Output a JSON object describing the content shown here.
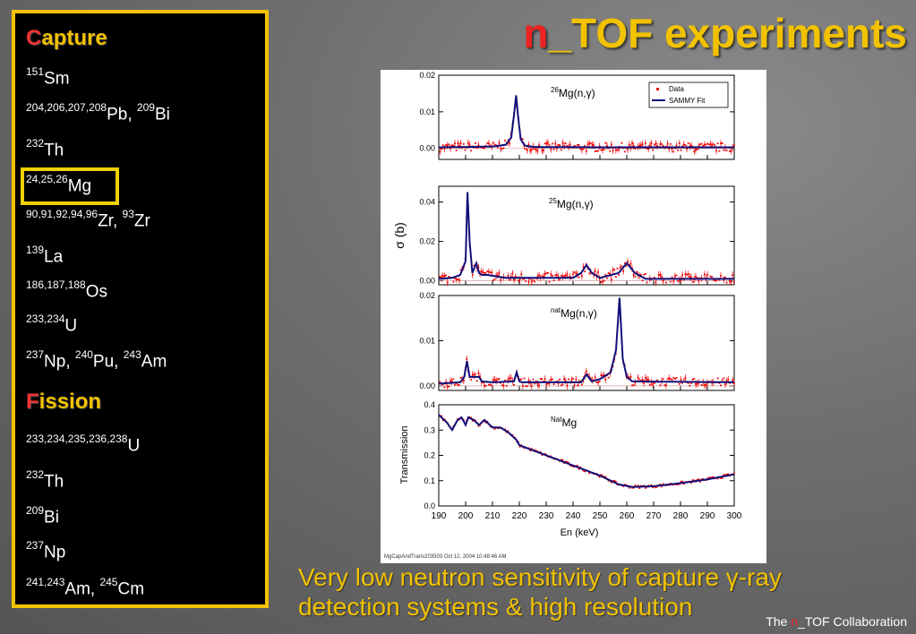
{
  "title": {
    "prefix": "n",
    "rest": "_TOF experiments"
  },
  "panel": {
    "capture_head_first": "C",
    "capture_head_rest": "apture",
    "capture_items": [
      {
        "sup": "151",
        "sym": "Sm"
      },
      {
        "sup": "204,206,207,208",
        "sym": "Pb,",
        "sup2": "209",
        "sym2": "Bi"
      },
      {
        "sup": "232",
        "sym": "Th"
      },
      {
        "sup": "24,25,26",
        "sym": "Mg"
      },
      {
        "sup": "90,91,92,94,96",
        "sym": "Zr,",
        "sup2": "93",
        "sym2": "Zr"
      },
      {
        "sup": "139",
        "sym": "La"
      },
      {
        "sup": "186,187,188",
        "sym": "Os"
      },
      {
        "sup": "233,234",
        "sym": "U"
      },
      {
        "sup": "237",
        "sym": "Np,",
        "sup2": "240",
        "sym2": "Pu,",
        "sup3": "243",
        "sym3": "Am"
      }
    ],
    "fission_head_first": "F",
    "fission_head_rest": "ission",
    "fission_items": [
      {
        "sup": "233,234,235,236,238",
        "sym": "U"
      },
      {
        "sup": "232",
        "sym": "Th"
      },
      {
        "sup": "209",
        "sym": "Bi"
      },
      {
        "sup": "237",
        "sym": "Np"
      },
      {
        "sup": "241,243",
        "sym": "Am,",
        "sup2": "245",
        "sym2": "Cm"
      }
    ]
  },
  "caption": "Very low neutron sensitivity of capture γ-ray detection systems & high resolution",
  "footer": {
    "the": "The ",
    "n": "n",
    "rest": "_TOF Collaboration"
  },
  "chart_data": {
    "type": "line",
    "x_range": [
      190,
      300
    ],
    "x_ticks": [
      "190",
      "200",
      "210",
      "220",
      "230",
      "240",
      "250",
      "260",
      "270",
      "280",
      "290",
      "300"
    ],
    "xlabel": "En (keV)",
    "shared_ylabel": "σ (b)",
    "footnote": "MgCapAndTrans203503  Oct 12, 2004  10:48:46 AM",
    "legend": {
      "data": "Data",
      "fit": "SAMMY Fit"
    },
    "panels": [
      {
        "label_sup": "26",
        "label": "Mg(n,γ)",
        "ylim": [
          -0.003,
          0.02
        ],
        "yticks": [
          "0.00",
          "0.01",
          "0.02"
        ],
        "ytick_vals": [
          0,
          0.01,
          0.02
        ],
        "fit": {
          "x": [
            190,
            210,
            215,
            217,
            218,
            218.8,
            219.5,
            220.5,
            222,
            225,
            250,
            280,
            300
          ],
          "y": [
            0.0003,
            0.0005,
            0.001,
            0.003,
            0.009,
            0.0145,
            0.009,
            0.0025,
            0.0008,
            0.0004,
            0.0003,
            0.0003,
            0.0003
          ]
        },
        "data_noise": 0.0012
      },
      {
        "label_sup": "25",
        "label": "Mg(n,γ)",
        "ylim": [
          -0.002,
          0.048
        ],
        "yticks": [
          "0.00",
          "0.02",
          "0.04"
        ],
        "ytick_vals": [
          0,
          0.02,
          0.04
        ],
        "fit": {
          "x": [
            190,
            195,
            198,
            200,
            200.7,
            201.5,
            202.5,
            204,
            205,
            206,
            208,
            215,
            240,
            243,
            245,
            247,
            250,
            257,
            260,
            263,
            267,
            300
          ],
          "y": [
            0.001,
            0.0015,
            0.003,
            0.01,
            0.045,
            0.02,
            0.004,
            0.009,
            0.004,
            0.003,
            0.003,
            0.0015,
            0.0015,
            0.004,
            0.008,
            0.004,
            0.0015,
            0.004,
            0.009,
            0.004,
            0.001,
            0.001
          ]
        },
        "data_noise": 0.0025
      },
      {
        "label_sup": "nat",
        "label": "Mg(n,γ)",
        "ylim": [
          -0.001,
          0.02
        ],
        "yticks": [
          "0.00",
          "0.01",
          "0.02"
        ],
        "ytick_vals": [
          0,
          0.01,
          0.02
        ],
        "fit": {
          "x": [
            190,
            198,
            199.5,
            200.5,
            201.5,
            203,
            205,
            206,
            210,
            218,
            219,
            220,
            221,
            243,
            245,
            247,
            250,
            254,
            256,
            257.3,
            258.5,
            260,
            262,
            300
          ],
          "y": [
            0.0005,
            0.0008,
            0.002,
            0.0055,
            0.002,
            0.002,
            0.002,
            0.001,
            0.0008,
            0.001,
            0.003,
            0.001,
            0.0008,
            0.0008,
            0.0025,
            0.001,
            0.0015,
            0.003,
            0.008,
            0.0195,
            0.006,
            0.002,
            0.001,
            0.0008
          ]
        },
        "data_noise": 0.0009
      },
      {
        "label_sup": "Nat",
        "label": "Mg",
        "ylim": [
          0.0,
          0.4
        ],
        "ylabel": "Transmission",
        "yticks": [
          "0.0",
          "0.1",
          "0.2",
          "0.3",
          "0.4"
        ],
        "ytick_vals": [
          0,
          0.1,
          0.2,
          0.3,
          0.4
        ],
        "fit": {
          "x": [
            190,
            193,
            195,
            197,
            198.5,
            200,
            201,
            203,
            205,
            207,
            210,
            213,
            216,
            219,
            220,
            225,
            230,
            240,
            250,
            257,
            262,
            270,
            280,
            290,
            300
          ],
          "y": [
            0.36,
            0.33,
            0.3,
            0.34,
            0.35,
            0.32,
            0.35,
            0.34,
            0.32,
            0.34,
            0.31,
            0.31,
            0.29,
            0.26,
            0.24,
            0.22,
            0.2,
            0.16,
            0.12,
            0.085,
            0.075,
            0.078,
            0.09,
            0.105,
            0.125
          ]
        },
        "data_noise": 0.006
      }
    ]
  }
}
